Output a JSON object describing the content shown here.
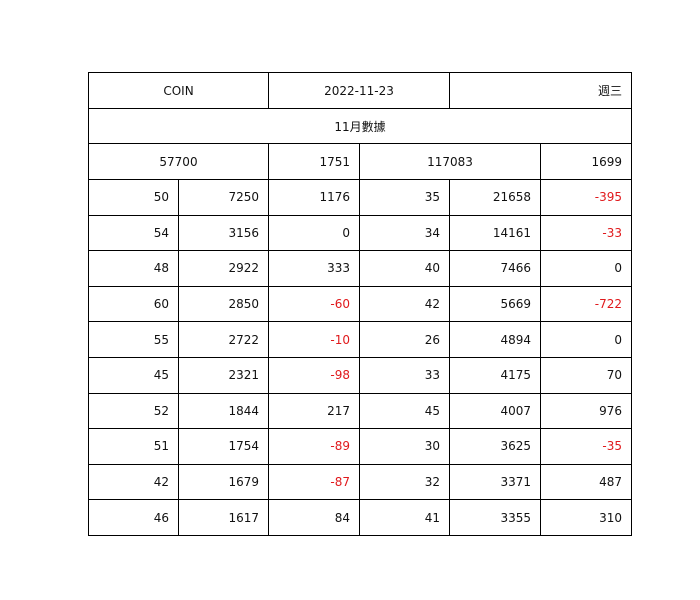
{
  "header": {
    "symbol": "COIN",
    "date": "2022-11-23",
    "weekday": "週三"
  },
  "subtitle": "11月數據",
  "totals": [
    "57700",
    "1751",
    "117083",
    "1699"
  ],
  "rows": [
    [
      "50",
      "7250",
      "1176",
      "35",
      "21658",
      "-395"
    ],
    [
      "54",
      "3156",
      "0",
      "34",
      "14161",
      "-33"
    ],
    [
      "48",
      "2922",
      "333",
      "40",
      "7466",
      "0"
    ],
    [
      "60",
      "2850",
      "-60",
      "42",
      "5669",
      "-722"
    ],
    [
      "55",
      "2722",
      "-10",
      "26",
      "4894",
      "0"
    ],
    [
      "45",
      "2321",
      "-98",
      "33",
      "4175",
      "70"
    ],
    [
      "52",
      "1844",
      "217",
      "45",
      "4007",
      "976"
    ],
    [
      "51",
      "1754",
      "-89",
      "30",
      "3625",
      "-35"
    ],
    [
      "42",
      "1679",
      "-87",
      "32",
      "3371",
      "487"
    ],
    [
      "46",
      "1617",
      "84",
      "41",
      "3355",
      "310"
    ]
  ],
  "colors": {
    "negative": "#e0191c",
    "text": "#111111",
    "border": "#000000"
  }
}
